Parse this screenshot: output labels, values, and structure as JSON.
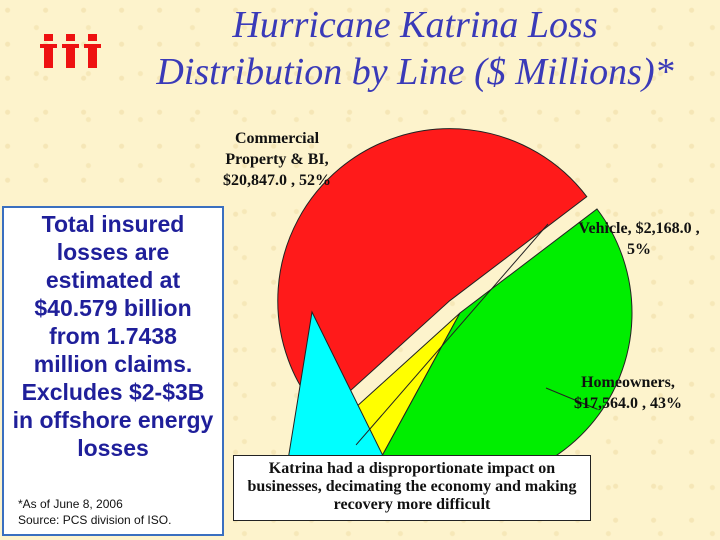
{
  "slide": {
    "title_line1": "Hurricane Katrina Loss",
    "title_line2": "Distribution by Line ($ Millions)*",
    "logo_text": "iii",
    "text_box": "Total insured losses are estimated at $40.579 billion from 1.7438 million claims. Excludes $2-$3B in offshore energy losses",
    "footnote_line1": "*As of June 8, 2006",
    "footnote_line2": "Source:  PCS division of ISO.",
    "callout": "Katrina had a disproportionate impact on businesses, decimating the economy and making recovery more difficult"
  },
  "colors": {
    "title": "#3a3ab8",
    "commercial": "#ff1a1a",
    "vehicle": "#ffff00",
    "homeowners": "#00ee00",
    "callout_wedge": "#00ffff",
    "text_box": "#1f1f9a",
    "logo": "#ee1111"
  },
  "chart_data": {
    "type": "pie",
    "title": "",
    "slices": [
      {
        "label": "Commercial Property & BI",
        "value": 20847.0,
        "percent": 52,
        "display": "Commercial Property & BI, $20,847.0 , 52%",
        "exploded": true,
        "color": "#ff1a1a"
      },
      {
        "label": "Vehicle",
        "value": 2168.0,
        "percent": 5,
        "display": "Vehicle, $2,168.0 , 5%",
        "exploded": false,
        "color": "#ffff00"
      },
      {
        "label": "Homeowners",
        "value": 17564.0,
        "percent": 43,
        "display": "Homeowners, $17,564.0 , 43%",
        "exploded": false,
        "color": "#00ee00"
      }
    ],
    "labels": {
      "commercial_line1": "Commercial",
      "commercial_line2": "Property & BI,",
      "commercial_line3": "$20,847.0 , 52%",
      "vehicle_line1": "Vehicle, $2,168.0 ,",
      "vehicle_line2": "5%",
      "homeowners_line1": "Homeowners,",
      "homeowners_line2": "$17,564.0 , 43%"
    }
  }
}
